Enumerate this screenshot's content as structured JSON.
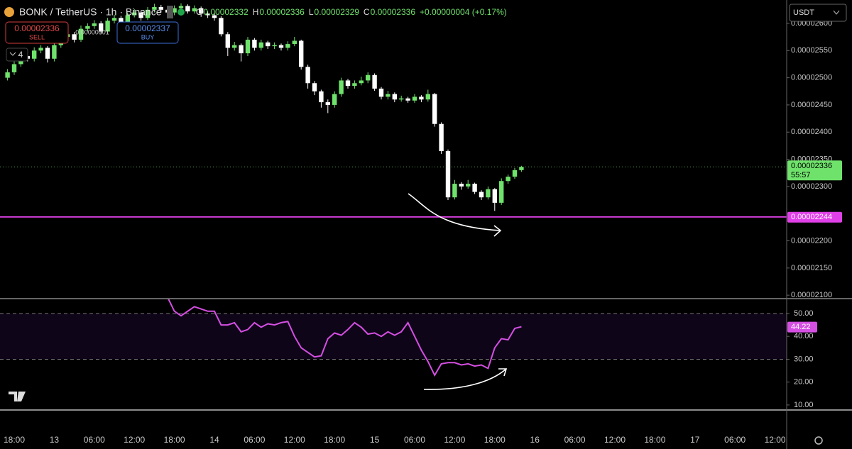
{
  "header": {
    "symbol": "BONK / TetherUS · 1h · Binance",
    "ohlc": [
      {
        "key": "O",
        "value": "0.00002332"
      },
      {
        "key": "H",
        "value": "0.00002336"
      },
      {
        "key": "L",
        "value": "0.00002329"
      },
      {
        "key": "C",
        "value": "0.00002336"
      }
    ],
    "change": "+0.00000004 (+0.17%)",
    "sell_price": "0.00002336",
    "sell": "SELL",
    "spread": "0.00000001",
    "buy_price": "0.00002337",
    "buy": "BUY",
    "indicators": "4",
    "currency": "USDT",
    "countdown": "55:57"
  },
  "chart_data": [
    {
      "type": "candlestick",
      "up_color": "#6fe26b",
      "down_color": "#ffffff",
      "open": [
        2.5e-05,
        2.51e-05,
        2.525e-05,
        2.54e-05,
        2.535e-05,
        2.55e-05,
        2.555e-05,
        2.535e-05,
        2.56e-05,
        2.575e-05,
        2.58e-05,
        2.57e-05,
        2.59e-05,
        2.595e-05,
        2.6e-05,
        2.585e-05,
        2.605e-05,
        2.61e-05,
        2.6e-05,
        2.615e-05,
        2.62e-05,
        2.61e-05,
        2.625e-05,
        2.63e-05,
        2.625e-05,
        2.62e-05,
        2.628e-05,
        2.632e-05,
        2.622e-05,
        2.628e-05,
        2.618e-05,
        2.615e-05,
        2.61e-05,
        2.58e-05,
        2.555e-05,
        2.56e-05,
        2.545e-05,
        2.57e-05,
        2.555e-05,
        2.565e-05,
        2.558e-05,
        2.56e-05,
        2.555e-05,
        2.562e-05,
        2.568e-05,
        2.52e-05,
        2.49e-05,
        2.475e-05,
        2.455e-05,
        2.45e-05,
        2.47e-05,
        2.495e-05,
        2.485e-05,
        2.49e-05,
        2.495e-05,
        2.505e-05,
        2.48e-05,
        2.465e-05,
        2.47e-05,
        2.46e-05,
        2.462e-05,
        2.458e-05,
        2.465e-05,
        2.46e-05,
        2.47e-05,
        2.415e-05,
        2.365e-05,
        2.28e-05,
        2.305e-05,
        2.3e-05,
        2.305e-05,
        2.29e-05,
        2.28e-05,
        2.295e-05,
        2.27e-05,
        2.31e-05,
        2.318e-05,
        2.33e-05
      ],
      "high": [
        2.516e-05,
        2.53e-05,
        2.545e-05,
        2.544e-05,
        2.556e-05,
        2.56e-05,
        2.558e-05,
        2.566e-05,
        2.58e-05,
        2.586e-05,
        2.584e-05,
        2.596e-05,
        2.6e-05,
        2.606e-05,
        2.604e-05,
        2.61e-05,
        2.616e-05,
        2.614e-05,
        2.62e-05,
        2.626e-05,
        2.624e-05,
        2.63e-05,
        2.636e-05,
        2.634e-05,
        2.63e-05,
        2.633e-05,
        2.637e-05,
        2.635e-05,
        2.633e-05,
        2.631e-05,
        2.622e-05,
        2.619e-05,
        2.613e-05,
        2.584e-05,
        2.566e-05,
        2.563e-05,
        2.575e-05,
        2.573e-05,
        2.57e-05,
        2.568e-05,
        2.565e-05,
        2.563e-05,
        2.567e-05,
        2.575e-05,
        2.57e-05,
        2.524e-05,
        2.494e-05,
        2.478e-05,
        2.46e-05,
        2.475e-05,
        2.5e-05,
        2.498e-05,
        2.495e-05,
        2.502e-05,
        2.51e-05,
        2.508e-05,
        2.483e-05,
        2.476e-05,
        2.473e-05,
        2.467e-05,
        2.465e-05,
        2.47e-05,
        2.468e-05,
        2.478e-05,
        2.472e-05,
        2.418e-05,
        2.368e-05,
        2.312e-05,
        2.308e-05,
        2.312e-05,
        2.307e-05,
        2.293e-05,
        2.3e-05,
        2.297e-05,
        2.315e-05,
        2.322e-05,
        2.334e-05,
        2.338e-05
      ],
      "low": [
        2.495e-05,
        2.505e-05,
        2.52e-05,
        2.53e-05,
        2.53e-05,
        2.545e-05,
        2.528e-05,
        2.53e-05,
        2.555e-05,
        2.57e-05,
        2.565e-05,
        2.566e-05,
        2.585e-05,
        2.59e-05,
        2.58e-05,
        2.582e-05,
        2.6e-05,
        2.596e-05,
        2.596e-05,
        2.611e-05,
        2.605e-05,
        2.606e-05,
        2.62e-05,
        2.62e-05,
        2.614e-05,
        2.615e-05,
        2.624e-05,
        2.618e-05,
        2.618e-05,
        2.612e-05,
        2.61e-05,
        2.605e-05,
        2.576e-05,
        2.54e-05,
        2.55e-05,
        2.53e-05,
        2.54e-05,
        2.55e-05,
        2.55e-05,
        2.553e-05,
        2.553e-05,
        2.55e-05,
        2.55e-05,
        2.558e-05,
        2.515e-05,
        2.48e-05,
        2.468e-05,
        2.445e-05,
        2.435e-05,
        2.445e-05,
        2.465e-05,
        2.48e-05,
        2.48e-05,
        2.486e-05,
        2.49e-05,
        2.476e-05,
        2.46e-05,
        2.46e-05,
        2.455e-05,
        2.456e-05,
        2.454e-05,
        2.454e-05,
        2.455e-05,
        2.456e-05,
        2.41e-05,
        2.36e-05,
        2.275e-05,
        2.276e-05,
        2.294e-05,
        2.296e-05,
        2.286e-05,
        2.275e-05,
        2.276e-05,
        2.255e-05,
        2.266e-05,
        2.305e-05,
        2.314e-05,
        2.327e-05
      ],
      "close": [
        2.51e-05,
        2.525e-05,
        2.54e-05,
        2.535e-05,
        2.55e-05,
        2.555e-05,
        2.535e-05,
        2.56e-05,
        2.575e-05,
        2.58e-05,
        2.57e-05,
        2.59e-05,
        2.595e-05,
        2.6e-05,
        2.585e-05,
        2.605e-05,
        2.61e-05,
        2.6e-05,
        2.615e-05,
        2.62e-05,
        2.61e-05,
        2.625e-05,
        2.63e-05,
        2.625e-05,
        2.62e-05,
        2.628e-05,
        2.632e-05,
        2.622e-05,
        2.628e-05,
        2.618e-05,
        2.615e-05,
        2.61e-05,
        2.58e-05,
        2.555e-05,
        2.56e-05,
        2.545e-05,
        2.57e-05,
        2.555e-05,
        2.565e-05,
        2.558e-05,
        2.56e-05,
        2.555e-05,
        2.562e-05,
        2.568e-05,
        2.52e-05,
        2.49e-05,
        2.475e-05,
        2.455e-05,
        2.45e-05,
        2.47e-05,
        2.495e-05,
        2.485e-05,
        2.49e-05,
        2.495e-05,
        2.505e-05,
        2.48e-05,
        2.465e-05,
        2.47e-05,
        2.46e-05,
        2.462e-05,
        2.458e-05,
        2.465e-05,
        2.46e-05,
        2.47e-05,
        2.415e-05,
        2.365e-05,
        2.28e-05,
        2.305e-05,
        2.3e-05,
        2.305e-05,
        2.29e-05,
        2.28e-05,
        2.295e-05,
        2.27e-05,
        2.31e-05,
        2.318e-05,
        2.33e-05,
        2.336e-05
      ],
      "ylim": [
        2.095e-05,
        2.643e-05
      ],
      "yticks": [
        {
          "value": 2.6e-05,
          "label": "0.00002600"
        },
        {
          "value": 2.55e-05,
          "label": "0.00002550"
        },
        {
          "value": 2.5e-05,
          "label": "0.00002500"
        },
        {
          "value": 2.45e-05,
          "label": "0.00002450"
        },
        {
          "value": 2.4e-05,
          "label": "0.00002400"
        },
        {
          "value": 2.35e-05,
          "label": "0.00002350"
        },
        {
          "value": 2.3e-05,
          "label": "0.00002300"
        },
        {
          "value": 2.2e-05,
          "label": "0.00002200"
        },
        {
          "value": 2.15e-05,
          "label": "0.00002150"
        },
        {
          "value": 2.1e-05,
          "label": "0.00002100"
        }
      ],
      "last_price": 2.336e-05,
      "last_price_color": "#6fe26b",
      "hline": {
        "value": 2.244e-05,
        "color": "#e040e8"
      },
      "xticks": [
        "18:00",
        "13",
        "06:00",
        "12:00",
        "18:00",
        "14",
        "06:00",
        "12:00",
        "18:00",
        "15",
        "06:00",
        "12:00",
        "18:00",
        "16",
        "06:00",
        "12:00",
        "18:00",
        "17",
        "06:00",
        "12:00"
      ]
    },
    {
      "type": "line",
      "color": "#d54fe3",
      "band": [
        30,
        50
      ],
      "values": [
        null,
        null,
        null,
        null,
        null,
        null,
        null,
        null,
        null,
        null,
        null,
        null,
        null,
        null,
        null,
        null,
        null,
        null,
        null,
        null,
        null,
        null,
        null,
        null,
        57,
        51,
        49,
        51,
        53,
        52,
        51,
        51,
        45,
        45,
        46,
        42,
        43,
        46,
        44,
        45.5,
        45,
        46,
        46.5,
        40,
        35,
        33,
        31,
        31.5,
        39,
        41.5,
        40.5,
        43,
        46,
        44,
        41,
        41.5,
        40,
        42,
        40.5,
        42,
        46,
        40,
        34,
        29,
        23,
        28,
        28.5,
        28.5,
        27.5,
        28,
        27,
        27.5,
        26,
        35,
        39,
        38.5,
        43.5,
        44.22
      ],
      "last_value": 44.22,
      "ylim": [
        7.8,
        56.2
      ],
      "yticks": [
        {
          "value": 50,
          "label": "50.00"
        },
        {
          "value": 40,
          "label": "40.00"
        },
        {
          "value": 30,
          "label": "30.00"
        },
        {
          "value": 20,
          "label": "20.00"
        },
        {
          "value": 10,
          "label": "10.00"
        }
      ]
    }
  ]
}
